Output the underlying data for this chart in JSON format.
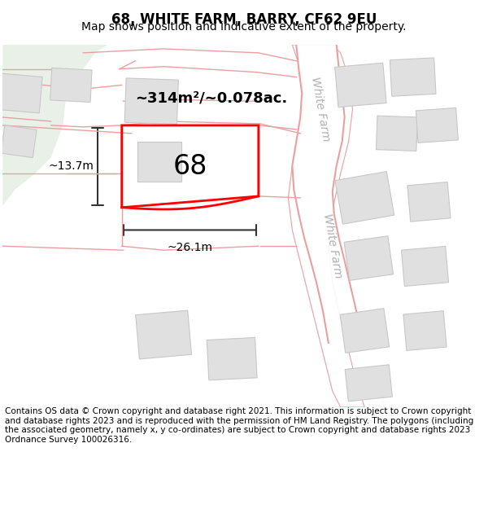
{
  "title": "68, WHITE FARM, BARRY, CF62 9EU",
  "subtitle": "Map shows position and indicative extent of the property.",
  "footer": "Contains OS data © Crown copyright and database right 2021. This information is subject to Crown copyright and database rights 2023 and is reproduced with the permission of HM Land Registry. The polygons (including the associated geometry, namely x, y co-ordinates) are subject to Crown copyright and database rights 2023 Ordnance Survey 100026316.",
  "bg_color": "#ffffff",
  "map_bg": "#f5f5f5",
  "green_area_color": "#e8f0e8",
  "road_color": "#f7c8c8",
  "road_edge_color": "#e8a0a0",
  "building_color": "#e0e0e0",
  "building_edge_color": "#c8c8c8",
  "highlight_plot_color": "#ff0000",
  "highlight_plot_fill": "none",
  "dim_color": "#333333",
  "label_68": "68",
  "area_label": "~314m²/~0.078ac.",
  "dim_width": "~26.1m",
  "dim_height": "~13.7m",
  "road_label1": "White Farm",
  "road_label2": "White Farm",
  "title_fontsize": 12,
  "subtitle_fontsize": 10,
  "footer_fontsize": 7.5
}
